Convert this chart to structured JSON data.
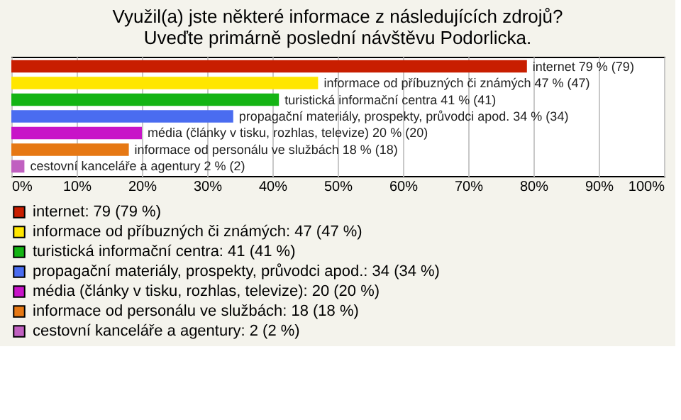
{
  "chart_data": {
    "type": "bar",
    "orientation": "horizontal",
    "title": "Využil(a) jste některé informace z následujících zdrojů? Uveďte primárně poslední návštěvu Podorlicka.",
    "categories": [
      null,
      null,
      null,
      null,
      null,
      null,
      null
    ],
    "series": [
      {
        "name": "internet: 79 (79 %)",
        "color": "#c81e00",
        "values": [
          79,
          null,
          null,
          null,
          null,
          null,
          null
        ],
        "value_labels": [
          "internet 79 % (79)",
          null,
          null,
          null,
          null,
          null,
          null
        ]
      },
      {
        "name": "informace od příbuzných či známých: 47 (47 %)",
        "color": "#ffe600",
        "values": [
          null,
          47,
          null,
          null,
          null,
          null,
          null
        ],
        "value_labels": [
          null,
          "informace od příbuzných či známých 47 % (47)",
          null,
          null,
          null,
          null,
          null
        ]
      },
      {
        "name": "turistická informační centra: 41 (41 %)",
        "color": "#14b414",
        "values": [
          null,
          null,
          41,
          null,
          null,
          null,
          null
        ],
        "value_labels": [
          null,
          null,
          "turistická informační centra 41 % (41)",
          null,
          null,
          null,
          null
        ]
      },
      {
        "name": "propagační materiály, prospekty, průvodci apod.: 34 (34 %)",
        "color": "#4a6cf0",
        "values": [
          null,
          null,
          null,
          34,
          null,
          null,
          null
        ],
        "value_labels": [
          null,
          null,
          null,
          "propagační materiály, prospekty, průvodci apod. 34 % (34)",
          null,
          null,
          null
        ]
      },
      {
        "name": "média (články v tisku, rozhlas, televize): 20 (20 %)",
        "color": "#c814c8",
        "values": [
          null,
          null,
          null,
          null,
          20,
          null,
          null
        ],
        "value_labels": [
          null,
          null,
          null,
          null,
          "média (články v tisku, rozhlas, televize) 20 % (20)",
          null,
          null
        ]
      },
      {
        "name": "informace od personálu ve službách: 18 (18 %)",
        "color": "#e67814",
        "values": [
          null,
          null,
          null,
          null,
          null,
          18,
          null
        ],
        "value_labels": [
          null,
          null,
          null,
          null,
          null,
          "informace od personálu ve službách 18 % (18)",
          null
        ]
      },
      {
        "name": "cestovní kanceláře a agentury: 2 (2 %)",
        "color": "#c060c0",
        "values": [
          null,
          null,
          null,
          null,
          null,
          null,
          2
        ],
        "value_labels": [
          null,
          null,
          null,
          null,
          null,
          null,
          "cestovní kanceláře a agentury 2 % (2)"
        ]
      }
    ],
    "xlim": [
      0,
      100
    ],
    "xticks": [
      {
        "value": 0,
        "label": "0%"
      },
      {
        "value": 10,
        "label": "10%"
      },
      {
        "value": 20,
        "label": "20%"
      },
      {
        "value": 30,
        "label": "30%"
      },
      {
        "value": 40,
        "label": "40%"
      },
      {
        "value": 50,
        "label": "50%"
      },
      {
        "value": 60,
        "label": "60%"
      },
      {
        "value": 70,
        "label": "70%"
      },
      {
        "value": 80,
        "label": "80%"
      },
      {
        "value": 90,
        "label": "90%"
      },
      {
        "value": 100,
        "label": "100%"
      }
    ],
    "grid": "x",
    "legend": "bottom",
    "tick_labels": "x"
  }
}
